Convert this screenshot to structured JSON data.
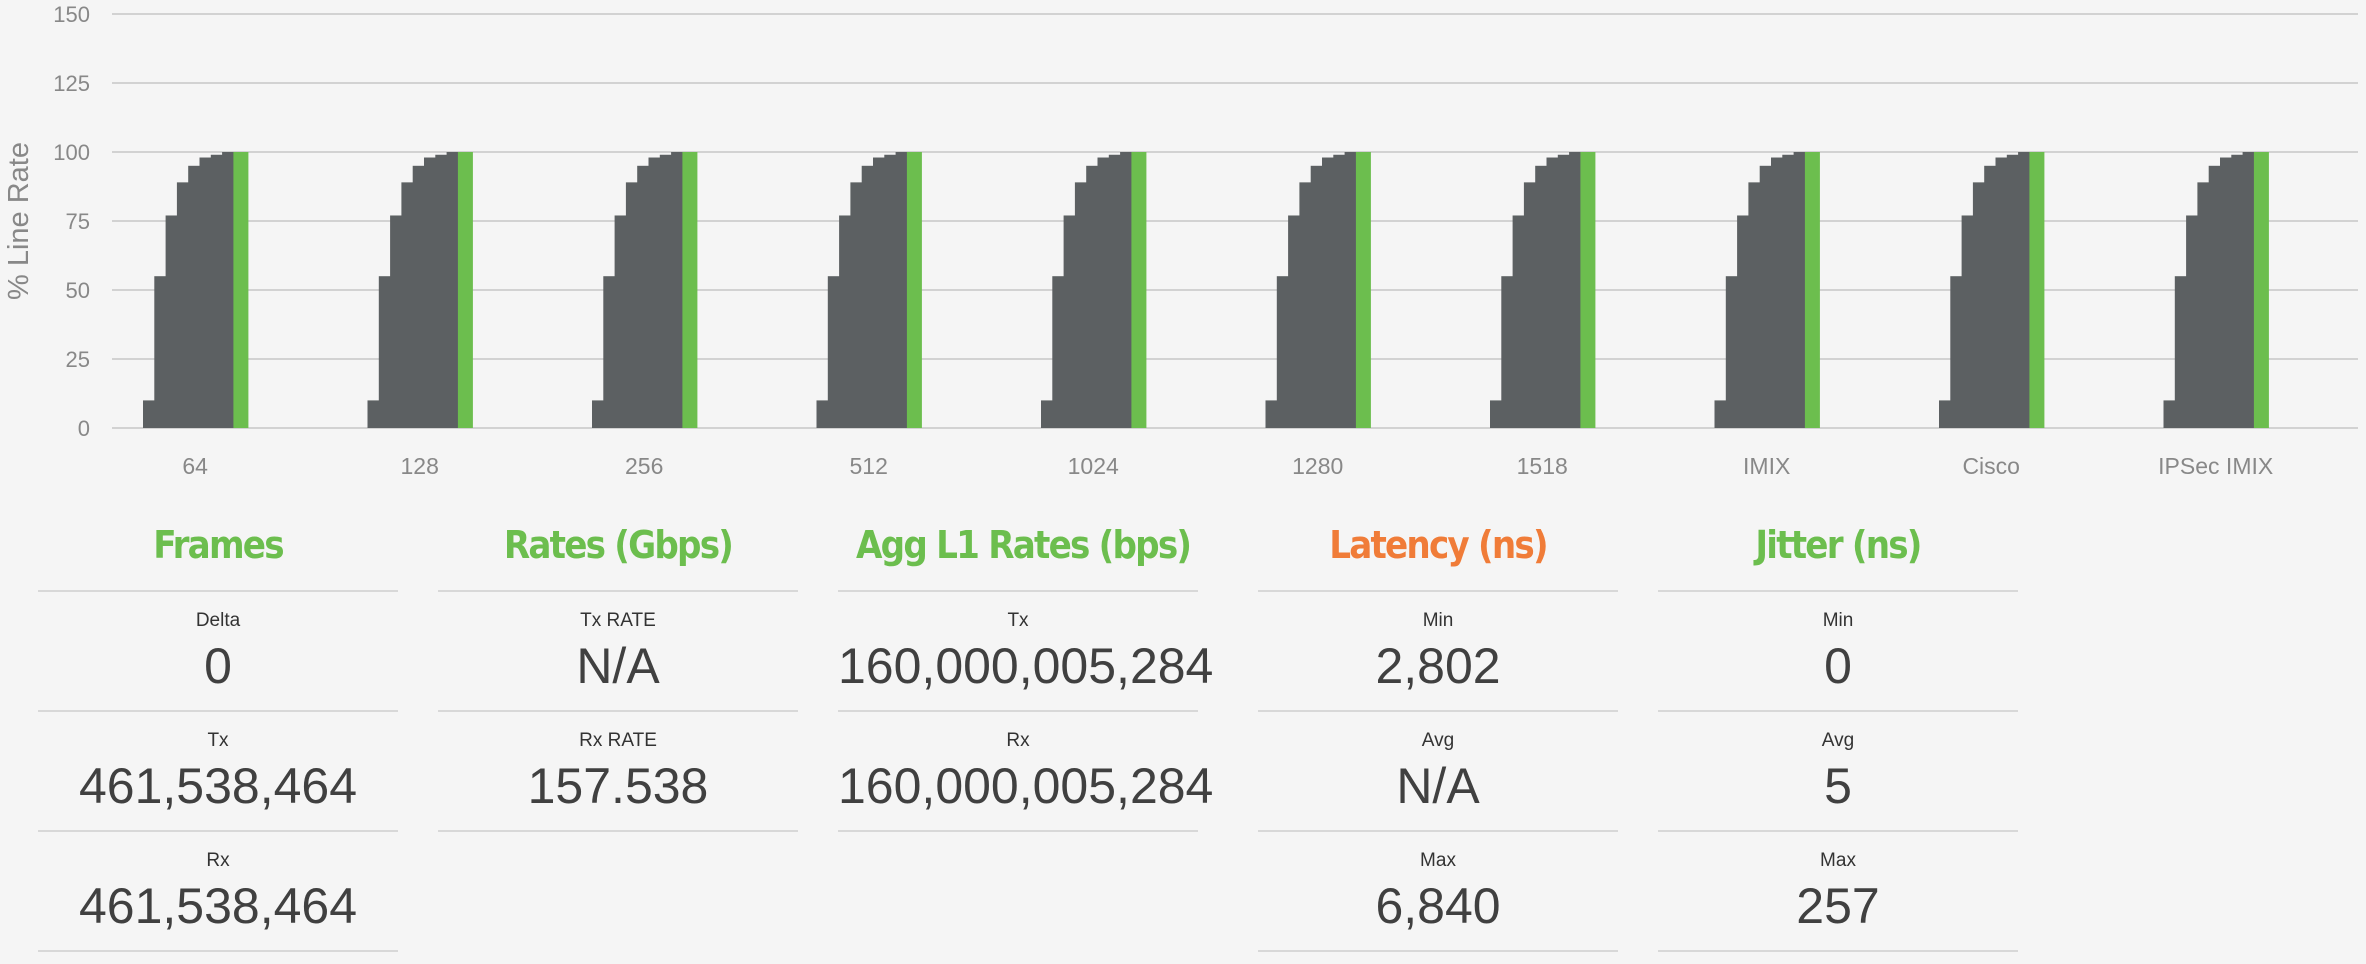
{
  "colors": {
    "bar": "#5c6062",
    "bar_highlight": "#6cbe4e",
    "grid": "#d2d2d2",
    "axis_text": "#888888",
    "title_green": "#6cbe4e",
    "title_orange": "#f07c38",
    "background": "#f5f5f5"
  },
  "chart_data": {
    "type": "bar",
    "ylabel": "% Line Rate",
    "xlabel": "",
    "ylim": [
      0,
      150
    ],
    "yticks": [
      0,
      25,
      50,
      75,
      100,
      125,
      150
    ],
    "grid": true,
    "legend": "none",
    "categories": [
      "64",
      "128",
      "256",
      "512",
      "1024",
      "1280",
      "1518",
      "IMIX",
      "Cisco",
      "IPSec IMIX"
    ],
    "groups": [
      {
        "category": "64",
        "values": [
          10,
          55,
          77,
          89,
          95,
          98,
          99,
          100,
          100
        ],
        "highlight_last": true
      },
      {
        "category": "128",
        "values": [
          10,
          55,
          77,
          89,
          95,
          98,
          99,
          100,
          100
        ],
        "highlight_last": true
      },
      {
        "category": "256",
        "values": [
          10,
          55,
          77,
          89,
          95,
          98,
          99,
          100,
          100
        ],
        "highlight_last": true
      },
      {
        "category": "512",
        "values": [
          10,
          55,
          77,
          89,
          95,
          98,
          99,
          100,
          100
        ],
        "highlight_last": true
      },
      {
        "category": "1024",
        "values": [
          10,
          55,
          77,
          89,
          95,
          98,
          99,
          100,
          100
        ],
        "highlight_last": true
      },
      {
        "category": "1280",
        "values": [
          10,
          55,
          77,
          89,
          95,
          98,
          99,
          100,
          100
        ],
        "highlight_last": true
      },
      {
        "category": "1518",
        "values": [
          10,
          55,
          77,
          89,
          95,
          98,
          99,
          100,
          100
        ],
        "highlight_last": true
      },
      {
        "category": "IMIX",
        "values": [
          10,
          55,
          77,
          89,
          95,
          98,
          99,
          100,
          100
        ],
        "highlight_last": true
      },
      {
        "category": "Cisco",
        "values": [
          10,
          55,
          77,
          89,
          95,
          98,
          99,
          100,
          100
        ],
        "highlight_last": true
      },
      {
        "category": "IPSec IMIX",
        "values": [
          10,
          55,
          77,
          89,
          95,
          98,
          99,
          100,
          100
        ],
        "highlight_last": true
      }
    ]
  },
  "stats": {
    "frames": {
      "title": "Frames",
      "rows": [
        {
          "label": "Delta",
          "value": "0"
        },
        {
          "label": "Tx",
          "value": "461,538,464"
        },
        {
          "label": "Rx",
          "value": "461,538,464"
        }
      ]
    },
    "rates": {
      "title": "Rates (Gbps)",
      "rows": [
        {
          "label": "Tx RATE",
          "value": "N/A"
        },
        {
          "label": "Rx RATE",
          "value": "157.538"
        }
      ]
    },
    "agg": {
      "title": "Agg L1 Rates (bps)",
      "rows": [
        {
          "label": "Tx",
          "value": "160,000,005,284"
        },
        {
          "label": "Rx",
          "value": "160,000,005,284"
        }
      ]
    },
    "latency": {
      "title": "Latency (ns)",
      "rows": [
        {
          "label": "Min",
          "value": "2,802"
        },
        {
          "label": "Avg",
          "value": "N/A"
        },
        {
          "label": "Max",
          "value": "6,840"
        }
      ]
    },
    "jitter": {
      "title": "Jitter (ns)",
      "rows": [
        {
          "label": "Min",
          "value": "0"
        },
        {
          "label": "Avg",
          "value": "5"
        },
        {
          "label": "Max",
          "value": "257"
        }
      ]
    }
  }
}
